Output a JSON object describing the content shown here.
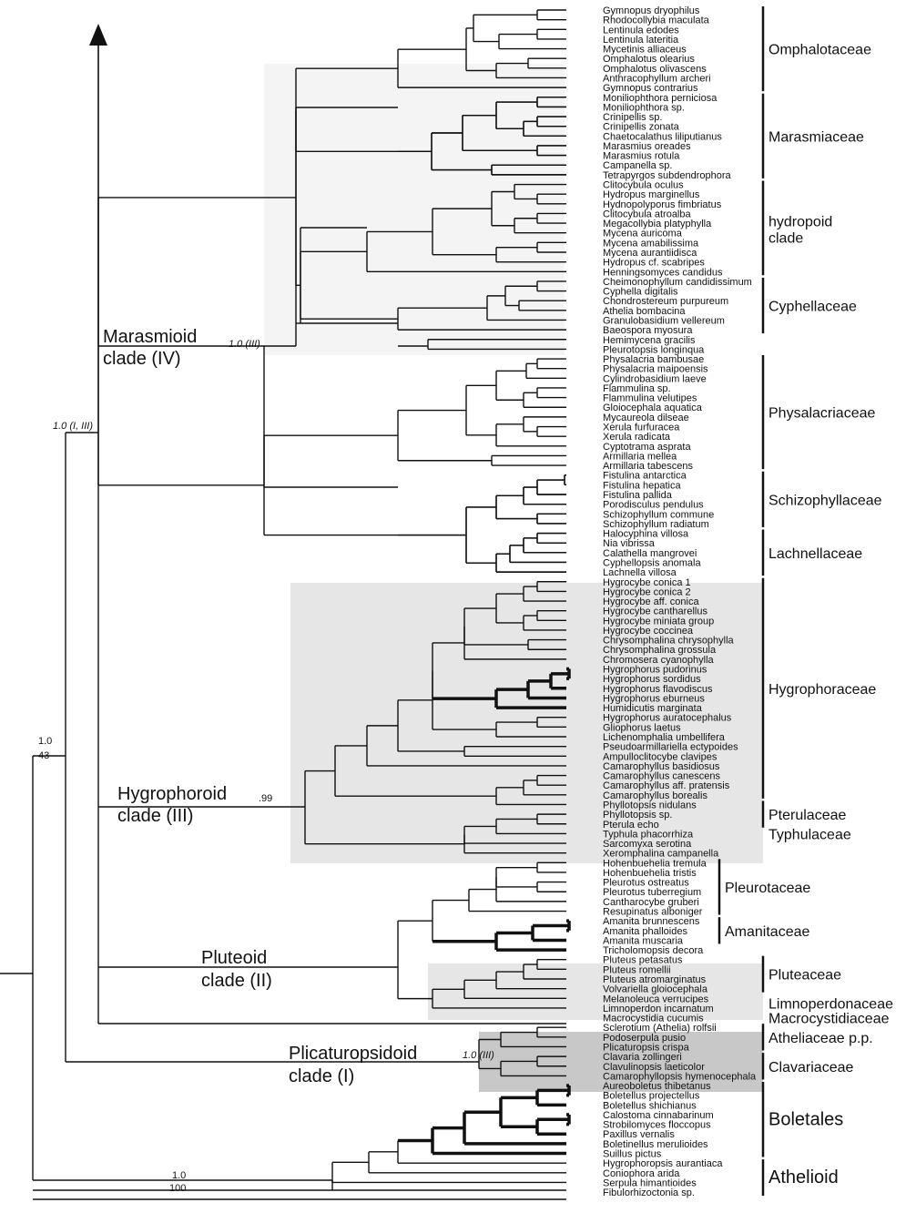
{
  "taxa": [
    "Gymnopus dryophilus",
    "Rhodocollybia maculata",
    "Lentinula edodes",
    "Lentinula lateritia",
    "Mycetinis alliaceus",
    "Omphalotus olearius",
    "Omphalotus olivascens",
    "Anthracophyllum archeri",
    "Gymnopus contrarius",
    "Moniliophthora perniciosa",
    "Moniliophthora sp.",
    "Crinipellis sp.",
    "Crinipellis zonata",
    "Chaetocalathus liliputianus",
    "Marasmius oreades",
    "Marasmius rotula",
    "Campanella sp.",
    "Tetrapyrgos subdendrophora",
    "Clitocybula oculus",
    "Hydropus marginellus",
    "Hydnopolyporus fimbriatus",
    "Clitocybula atroalba",
    "Megacollybia platyphylla",
    "Mycena auricoma",
    "Mycena amabilissima",
    "Mycena aurantiidisca",
    "Hydropus cf. scabripes",
    "Henningsomyces candidus",
    "Cheimonophyllum candidissimum",
    "Cyphella digitalis",
    "Chondrostereum purpureum",
    "Athelia bombacina",
    "Granulobasidium vellereum",
    "Baeospora myosura",
    "Hemimycena gracilis",
    "Pleurotopsis longinqua",
    "Physalacria bambusae",
    "Physalacria maipoensis",
    "Cylindrobasidium laeve",
    "Flammulina sp.",
    "Flammulina velutipes",
    "Gloiocephala aquatica",
    "Mycaureola dilseae",
    "Xerula furfuracea",
    "Xerula radicata",
    "Cyptotrama asprata",
    "Armillaria mellea",
    "Armillaria tabescens",
    "Fistulina antarctica",
    "Fistulina hepatica",
    "Fistulina pallida",
    "Porodisculus pendulus",
    "Schizophyllum commune",
    "Schizophyllum radiatum",
    "Halocyphina villosa",
    "Nia vibrissa",
    "Calathella mangrovei",
    "Cyphellopsis anomala",
    "Lachnella villosa",
    "Hygrocybe conica 1",
    "Hygrocybe conica 2",
    "Hygrocybe aff. conica",
    "Hygrocybe cantharellus",
    "Hygrocybe miniata group",
    "Hygrocybe coccinea",
    "Chrysomphalina chrysophylla",
    "Chrysomphalina grossula",
    "Chromosera cyanophylla",
    "Hygrophorus pudorinus",
    "Hygrophorus sordidus",
    "Hygrophorus flavodiscus",
    "Hygrophorus eburneus",
    "Humidicutis marginata",
    "Hygrophorus auratocephalus",
    "Gliophorus laetus",
    "Lichenomphalia umbellifera",
    "Pseudoarmillariella ectypoides",
    "Ampulloclitocybe clavipes",
    "Camarophyllus basidiosus",
    "Camarophyllus canescens",
    "Camarophyllus aff. pratensis",
    "Camarophyllus borealis",
    "Phyllotopsis nidulans",
    "Phyllotopsis sp.",
    "Pterula echo",
    "Typhula phacorrhiza",
    "Sarcomyxa serotina",
    "Xeromphalina campanella",
    "Hohenbuehelia tremula",
    "Hohenbuehelia tristis",
    "Pleurotus ostreatus",
    "Pleurotus tuberregium",
    "Cantharocybe gruberi",
    "Resupinatus alboniger",
    "Amanita brunnescens",
    "Amanita phalloides",
    "Amanita muscaria",
    "Tricholomopsis decora",
    "Pluteus petasatus",
    "Pluteus romellii",
    "Pluteus atromarginatus",
    "Volvariella gloiocephala",
    "Melanoleuca verrucipes",
    "Limnoperdon incarnatum",
    "Macrocystidia cucumis",
    "Sclerotium (Athelia) rolfsii",
    "Podoserpula pusio",
    "Plicaturopsis crispa",
    "Clavaria zollingeri",
    "Clavulinopsis laeticolor",
    "Camarophyllopsis hymenocephala",
    "Aureoboletus thibetanus",
    "Boletellus projectellus",
    "Boletellus shichianus",
    "Calostoma cinnabarinum",
    "Strobilomyces floccopus",
    "Paxillus vernalis",
    "Boletinellus merulioides",
    "Suillus pictus",
    "Hygrophoropsis aurantiaca",
    "Coniophora arida",
    "Serpula himantioides",
    "Fibulorhizoctonia sp."
  ],
  "families": [
    {
      "name": "Omphalotaceae",
      "first": 0,
      "last": 8
    },
    {
      "name": "Marasmiaceae",
      "first": 9,
      "last": 17
    },
    {
      "name": "hydropoid",
      "name2": "clade",
      "first": 18,
      "last": 27
    },
    {
      "name": "Cyphellaceae",
      "first": 28,
      "last": 33
    },
    {
      "name": "Physalacriaceae",
      "first": 36,
      "last": 47
    },
    {
      "name": "Schizophyllaceae",
      "first": 48,
      "last": 53
    },
    {
      "name": "Lachnellaceae",
      "first": 54,
      "last": 58
    },
    {
      "name": "Hygrophoraceae",
      "first": 59,
      "last": 81
    },
    {
      "name": "Pterulaceae",
      "first": 82,
      "last": 84
    },
    {
      "name": "Typhulaceae",
      "first": 85,
      "last": 85,
      "nobar": true
    },
    {
      "name": "Pleurotaceae",
      "first": 88,
      "last": 93,
      "short": true
    },
    {
      "name": "Amanitaceae",
      "first": 94,
      "last": 96,
      "short": true
    },
    {
      "name": "Pluteaceae",
      "first": 98,
      "last": 101
    },
    {
      "name": "Limnoperdonaceae",
      "first": 102,
      "last": 103,
      "nobar": true
    },
    {
      "name": "Macrocystidiaceae",
      "first": 104,
      "last": 104,
      "nobar": true
    },
    {
      "name": "Atheliaceae p.p.",
      "first": 105,
      "last": 107
    },
    {
      "name": "Clavariaceae",
      "first": 108,
      "last": 110
    },
    {
      "name": "Boletales",
      "first": 111,
      "last": 118,
      "big": true
    },
    {
      "name": "Athelioid",
      "first": 119,
      "last": 122,
      "big": true
    }
  ],
  "clades": [
    {
      "line1": "Marasmioid",
      "line2": "clade (IV)",
      "support": "1.0 (III)"
    },
    {
      "line1": "Hygrophoroid",
      "line2": "clade (III)",
      "support": ".99"
    },
    {
      "line1": "Pluteoid",
      "line2": "clade (II)",
      "support": ""
    },
    {
      "line1": "Plicaturopsidoid",
      "line2": "clade (I)",
      "support": "1.0 (III)"
    }
  ],
  "backbone_labels": {
    "root_top": "1.0",
    "root_bottom": "43",
    "agaricoid": "1.0 (I, III)",
    "boletales_top": "1.0",
    "boletales_bottom": "100"
  },
  "colors": {
    "highlight": "#e6e6e6",
    "highlight_dark": "#c8c8c8",
    "ink": "#111111"
  }
}
